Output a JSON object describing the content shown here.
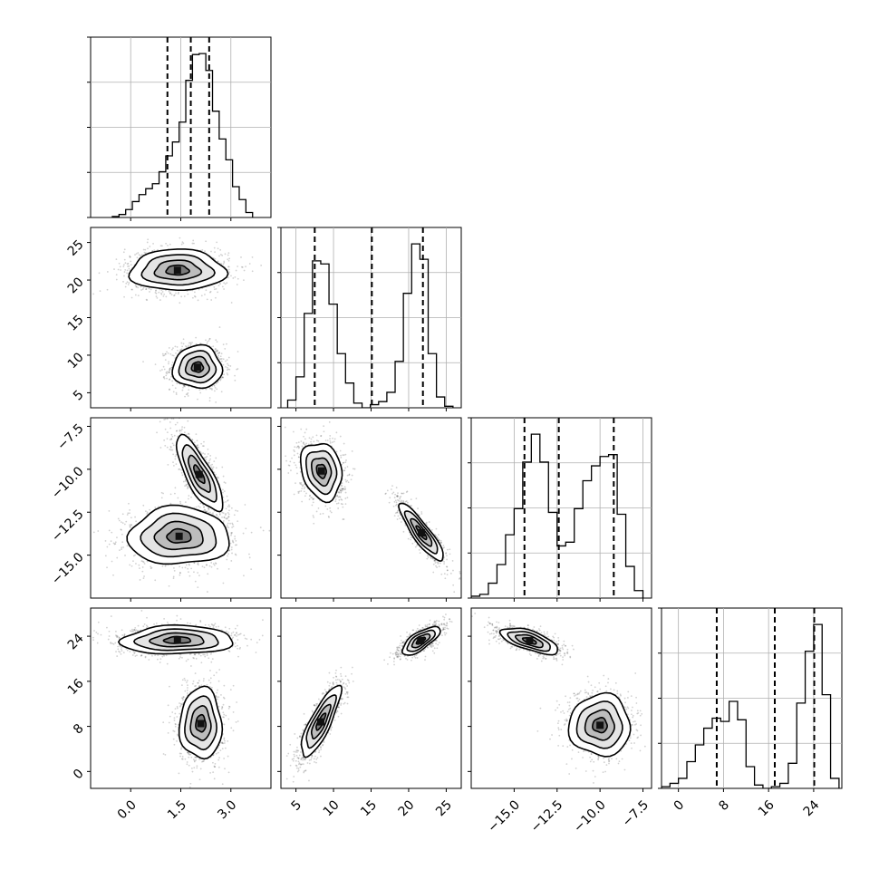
{
  "chart_data": {
    "type": "corner",
    "title": "",
    "parameters": [
      {
        "id": "p0",
        "range": [
          -1.2,
          4.2
        ],
        "ticks": [
          0.0,
          1.5,
          3.0
        ],
        "tick_labels": [
          "0.0",
          "1.5",
          "3.0"
        ],
        "quantiles": [
          1.1,
          1.8,
          2.35
        ],
        "hist": {
          "edges": [
            -0.55,
            -0.35,
            -0.15,
            0.05,
            0.25,
            0.45,
            0.65,
            0.85,
            1.05,
            1.25,
            1.45,
            1.65,
            1.85,
            2.05,
            2.25,
            2.45,
            2.65,
            2.85,
            3.05,
            3.25,
            3.45,
            3.65
          ],
          "counts": [
            1,
            3,
            8,
            16,
            23,
            29,
            34,
            46,
            62,
            76,
            96,
            138,
            164,
            165,
            148,
            107,
            79,
            58,
            31,
            18,
            5
          ]
        }
      },
      {
        "id": "p1",
        "range": [
          3,
          27
        ],
        "ticks": [
          5,
          10,
          15,
          20,
          25
        ],
        "tick_labels": [
          "5",
          "10",
          "15",
          "20",
          "25"
        ],
        "quantiles": [
          7.5,
          15.1,
          21.9
        ],
        "hist": {
          "edges": [
            3.9,
            5.0,
            6.1,
            7.2,
            8.3,
            9.4,
            10.5,
            11.6,
            12.7,
            13.8,
            14.9,
            16.0,
            17.1,
            18.2,
            19.3,
            20.4,
            21.5,
            22.6,
            23.7,
            24.8,
            25.9
          ],
          "counts": [
            5,
            20,
            61,
            95,
            93,
            67,
            35,
            16,
            3,
            0,
            2,
            4,
            10,
            30,
            74,
            106,
            96,
            35,
            7,
            1
          ]
        }
      },
      {
        "id": "p2",
        "range": [
          -17.5,
          -7
        ],
        "ticks": [
          -15.0,
          -12.5,
          -10.0,
          -7.5
        ],
        "tick_labels": [
          "−15.0",
          "−12.5",
          "−10.0",
          "−7.5"
        ],
        "quantiles": [
          -14.4,
          -12.4,
          -9.2
        ],
        "hist": {
          "edges": [
            -17.5,
            -17.0,
            -16.5,
            -16.0,
            -15.5,
            -15.0,
            -14.5,
            -14.0,
            -13.5,
            -13.0,
            -12.5,
            -12.0,
            -11.5,
            -11.0,
            -10.5,
            -10.0,
            -9.5,
            -9.0,
            -8.5,
            -8.0,
            -7.5
          ],
          "counts": [
            1,
            2,
            8,
            18,
            34,
            48,
            73,
            88,
            73,
            46,
            28,
            30,
            48,
            63,
            71,
            76,
            77,
            45,
            17,
            4
          ]
        }
      },
      {
        "id": "p3",
        "range": [
          -3,
          29
        ],
        "ticks": [
          0,
          8,
          16,
          24
        ],
        "tick_labels": [
          "0",
          "8",
          "16",
          "24"
        ],
        "quantiles": [
          6.8,
          17.1,
          24.1
        ],
        "hist": {
          "edges": [
            -3,
            -1.5,
            0,
            1.5,
            3,
            4.5,
            6,
            7.5,
            9,
            10.5,
            12,
            13.5,
            15,
            16.5,
            18,
            19.5,
            21,
            22.5,
            24,
            25.5,
            27,
            28.5
          ],
          "counts": [
            1,
            3,
            6,
            16,
            26,
            36,
            42,
            40,
            52,
            41,
            13,
            2,
            0,
            1,
            3,
            15,
            51,
            82,
            98,
            56,
            6
          ]
        }
      }
    ],
    "modes": [
      {
        "mean": [
          2.0,
          8.0,
          -10.0,
          9.0
        ],
        "sigma": [
          0.4,
          1.3,
          0.8,
          3.0
        ],
        "corr": {
          "0-2": -0.75,
          "1-3": 0.8
        }
      },
      {
        "mean": [
          1.4,
          21.5,
          -13.8,
          23.5
        ],
        "sigma": [
          0.7,
          1.3,
          0.8,
          1.3
        ],
        "corr": {
          "1-2": -0.85,
          "0-3": 0.0,
          "2-3": 0.0,
          "1-3": 0.7
        }
      }
    ],
    "pair_modes": {
      "1-0": [
        [
          2.0,
          8.4,
          0.35,
          1.35,
          0.0
        ],
        [
          1.4,
          21.3,
          0.68,
          1.3,
          0.0
        ]
      ],
      "2-0": [
        [
          2.05,
          -10.3,
          0.33,
          1.05,
          -0.78
        ],
        [
          1.45,
          -13.9,
          0.72,
          0.8,
          0.0
        ]
      ],
      "2-1": [
        [
          8.4,
          -10.1,
          1.3,
          0.8,
          -0.2
        ],
        [
          21.7,
          -13.7,
          1.4,
          0.8,
          -0.88
        ]
      ],
      "3-0": [
        [
          2.1,
          8.5,
          0.3,
          3.0,
          0.0
        ],
        [
          1.4,
          23.3,
          0.8,
          1.2,
          0.05
        ]
      ],
      "3-1": [
        [
          8.3,
          8.8,
          1.25,
          3.0,
          0.82
        ],
        [
          21.6,
          23.2,
          1.2,
          1.2,
          0.72
        ]
      ],
      "3-2": [
        [
          -14.1,
          23.2,
          0.8,
          1.1,
          -0.65
        ],
        [
          -10.0,
          8.2,
          0.85,
          2.6,
          0.0
        ]
      ]
    }
  }
}
